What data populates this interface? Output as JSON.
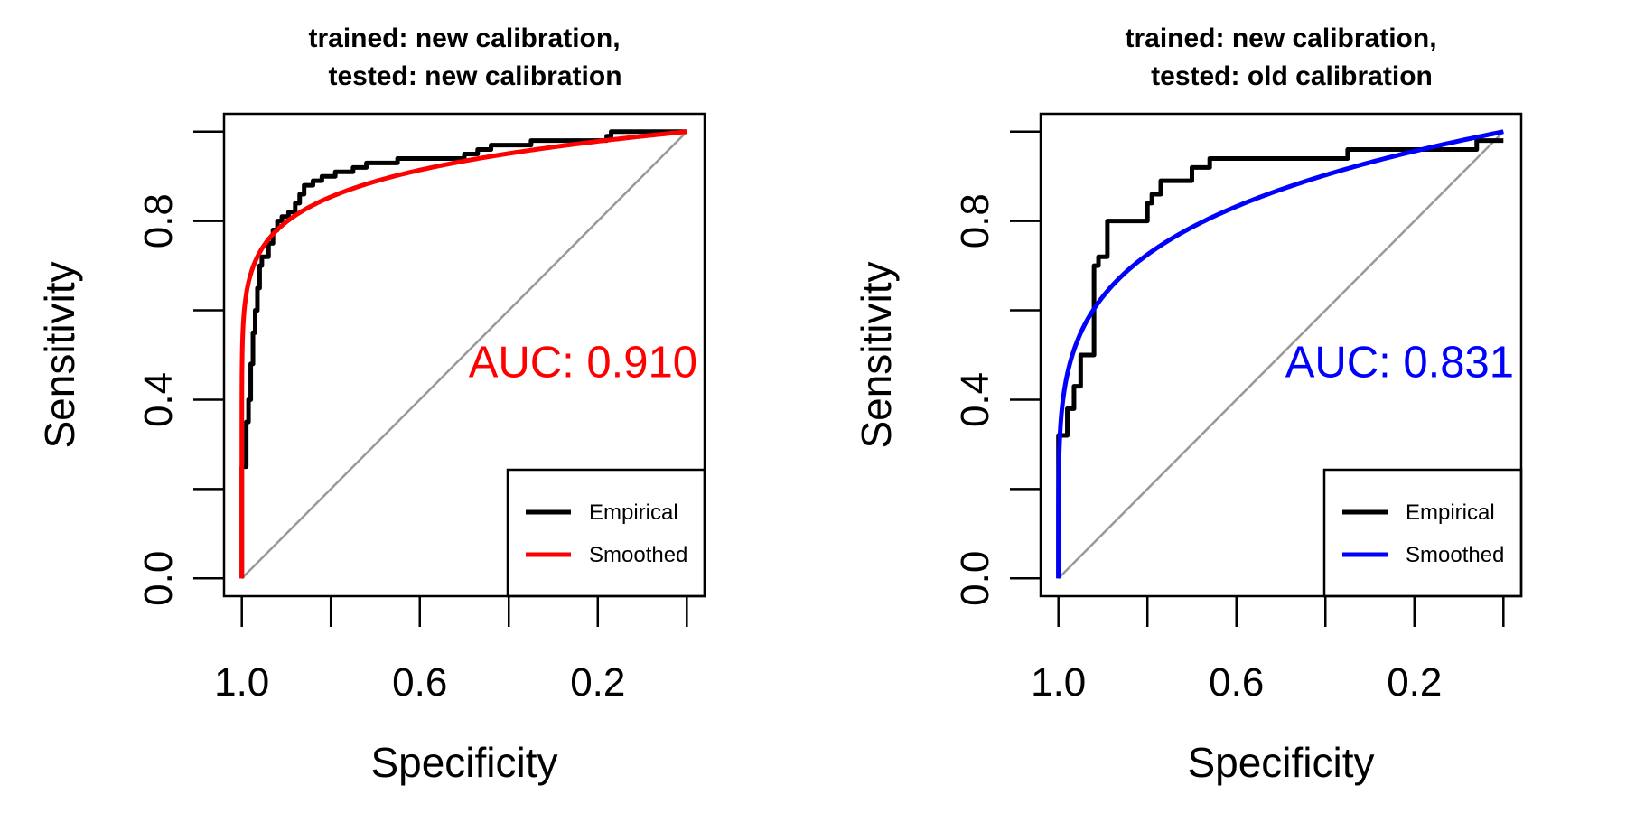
{
  "chart_data": [
    {
      "type": "line",
      "title_line1": "trained: new calibration,",
      "title_line2": "tested: new calibration",
      "xlabel": "Specificity",
      "ylabel": "Sensitivity",
      "xlim": [
        1.04,
        -0.04
      ],
      "ylim": [
        -0.04,
        1.04
      ],
      "x_reversed": true,
      "x_ticks": [
        1.0,
        0.8,
        0.6,
        0.4,
        0.2,
        0.0
      ],
      "x_tick_labels": [
        "1.0",
        "",
        "0.6",
        "",
        "0.2",
        ""
      ],
      "y_ticks": [
        0.0,
        0.2,
        0.4,
        0.6,
        0.8,
        1.0
      ],
      "y_tick_labels": [
        "0.0",
        "",
        "0.4",
        "",
        "0.8",
        ""
      ],
      "auc_label": "AUC: 0.910",
      "accent_color": "#ff0000",
      "diagonal_color": "#999999",
      "legend_position": "bottom-right",
      "series": [
        {
          "name": "Empirical",
          "color": "#000000",
          "step": true,
          "points": [
            [
              1.0,
              0.0
            ],
            [
              0.99,
              0.25
            ],
            [
              0.985,
              0.35
            ],
            [
              0.98,
              0.4
            ],
            [
              0.975,
              0.48
            ],
            [
              0.97,
              0.55
            ],
            [
              0.965,
              0.6
            ],
            [
              0.96,
              0.65
            ],
            [
              0.955,
              0.7
            ],
            [
              0.94,
              0.72
            ],
            [
              0.93,
              0.75
            ],
            [
              0.92,
              0.78
            ],
            [
              0.91,
              0.8
            ],
            [
              0.895,
              0.81
            ],
            [
              0.88,
              0.82
            ],
            [
              0.87,
              0.84
            ],
            [
              0.86,
              0.86
            ],
            [
              0.84,
              0.88
            ],
            [
              0.82,
              0.89
            ],
            [
              0.79,
              0.9
            ],
            [
              0.75,
              0.91
            ],
            [
              0.72,
              0.92
            ],
            [
              0.65,
              0.93
            ],
            [
              0.6,
              0.94
            ],
            [
              0.5,
              0.94
            ],
            [
              0.47,
              0.95
            ],
            [
              0.44,
              0.96
            ],
            [
              0.35,
              0.97
            ],
            [
              0.3,
              0.98
            ],
            [
              0.18,
              0.98
            ],
            [
              0.17,
              0.99
            ],
            [
              0.1,
              1.0
            ],
            [
              0.0,
              1.0
            ]
          ]
        },
        {
          "name": "Smoothed",
          "color": "#ff0000",
          "step": false,
          "curve_exponent": 0.098
        }
      ]
    },
    {
      "type": "line",
      "title_line1": "trained: new calibration,",
      "title_line2": "tested: old calibration",
      "xlabel": "Specificity",
      "ylabel": "Sensitivity",
      "xlim": [
        1.04,
        -0.04
      ],
      "ylim": [
        -0.04,
        1.04
      ],
      "x_reversed": true,
      "x_ticks": [
        1.0,
        0.8,
        0.6,
        0.4,
        0.2,
        0.0
      ],
      "x_tick_labels": [
        "1.0",
        "",
        "0.6",
        "",
        "0.2",
        ""
      ],
      "y_ticks": [
        0.0,
        0.2,
        0.4,
        0.6,
        0.8,
        1.0
      ],
      "y_tick_labels": [
        "0.0",
        "",
        "0.4",
        "",
        "0.8",
        ""
      ],
      "auc_label": "AUC: 0.831",
      "accent_color": "#0000ff",
      "diagonal_color": "#999999",
      "legend_position": "bottom-right",
      "series": [
        {
          "name": "Empirical",
          "color": "#000000",
          "step": true,
          "points": [
            [
              1.0,
              0.0
            ],
            [
              1.0,
              0.26
            ],
            [
              0.98,
              0.32
            ],
            [
              0.965,
              0.38
            ],
            [
              0.95,
              0.43
            ],
            [
              0.92,
              0.5
            ],
            [
              0.91,
              0.7
            ],
            [
              0.89,
              0.72
            ],
            [
              0.8,
              0.8
            ],
            [
              0.79,
              0.84
            ],
            [
              0.77,
              0.86
            ],
            [
              0.7,
              0.89
            ],
            [
              0.66,
              0.92
            ],
            [
              0.35,
              0.94
            ],
            [
              0.06,
              0.96
            ],
            [
              0.02,
              0.98
            ],
            [
              0.0,
              0.98
            ]
          ]
        },
        {
          "name": "Smoothed",
          "color": "#0000ff",
          "step": false,
          "curve_exponent": 0.2
        }
      ]
    }
  ]
}
